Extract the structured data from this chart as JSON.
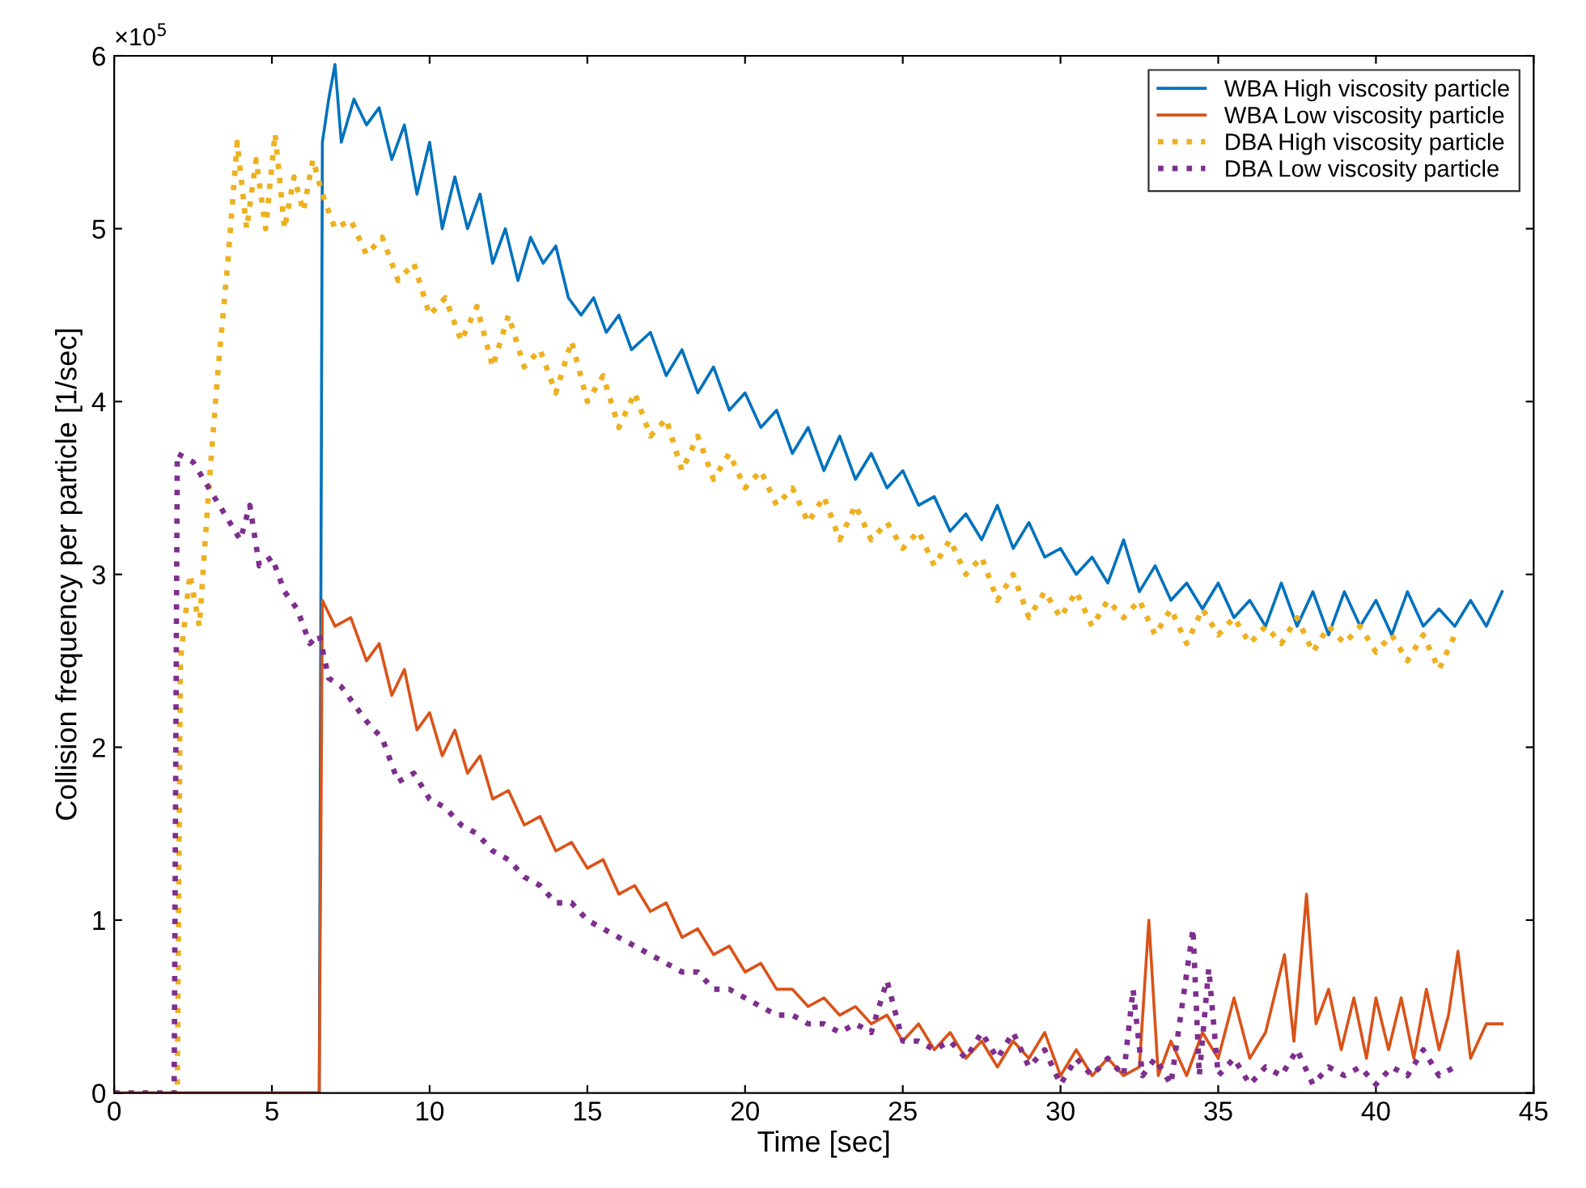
{
  "chart_data": {
    "type": "line",
    "xlabel": "Time [sec]",
    "ylabel": "Collision frequency per particle [1/sec]",
    "annotations": [
      "×10$^{5}$"
    ],
    "xlim": [
      0,
      45
    ],
    "ylim": [
      0,
      6
    ],
    "xticks": [
      0,
      5,
      10,
      15,
      20,
      25,
      30,
      35,
      40,
      45
    ],
    "yticks": [
      0,
      1,
      2,
      3,
      4,
      5,
      6
    ],
    "grid": false,
    "legend": "top right",
    "series": [
      {
        "name": "WBA High viscosity particle",
        "color": "#0072bd",
        "line_style": "solid",
        "x": [
          0,
          6.5,
          6.6,
          6.8,
          7.0,
          7.2,
          7.6,
          8.0,
          8.4,
          8.8,
          9.2,
          9.6,
          10.0,
          10.4,
          10.8,
          11.2,
          11.6,
          12.0,
          12.4,
          12.8,
          13.2,
          13.6,
          14.0,
          14.4,
          14.8,
          15.2,
          15.6,
          16.0,
          16.4,
          17.0,
          17.5,
          18.0,
          18.5,
          19.0,
          19.5,
          20.0,
          20.5,
          21.0,
          21.5,
          22.0,
          22.5,
          23.0,
          23.5,
          24.0,
          24.5,
          25.0,
          25.5,
          26.0,
          26.5,
          27.0,
          27.5,
          28.0,
          28.5,
          29.0,
          29.5,
          30.0,
          30.5,
          31.0,
          31.5,
          32.0,
          32.5,
          33.0,
          33.5,
          34.0,
          34.5,
          35.0,
          35.5,
          36.0,
          36.5,
          37.0,
          37.5,
          38.0,
          38.5,
          39.0,
          39.5,
          40.0,
          40.5,
          41.0,
          41.5,
          42.0,
          42.5,
          43.0,
          43.5,
          44.0
        ],
        "values": [
          0,
          0,
          5.5,
          5.75,
          5.95,
          5.5,
          5.75,
          5.6,
          5.7,
          5.4,
          5.6,
          5.2,
          5.5,
          5.0,
          5.3,
          5.0,
          5.2,
          4.8,
          5.0,
          4.7,
          4.95,
          4.8,
          4.9,
          4.6,
          4.5,
          4.6,
          4.4,
          4.5,
          4.3,
          4.4,
          4.15,
          4.3,
          4.05,
          4.2,
          3.95,
          4.05,
          3.85,
          3.95,
          3.7,
          3.85,
          3.6,
          3.8,
          3.55,
          3.7,
          3.5,
          3.6,
          3.4,
          3.45,
          3.25,
          3.35,
          3.2,
          3.4,
          3.15,
          3.3,
          3.1,
          3.15,
          3.0,
          3.1,
          2.95,
          3.2,
          2.9,
          3.05,
          2.85,
          2.95,
          2.8,
          2.95,
          2.75,
          2.85,
          2.7,
          2.95,
          2.7,
          2.9,
          2.65,
          2.9,
          2.7,
          2.85,
          2.65,
          2.9,
          2.7,
          2.8,
          2.7,
          2.85,
          2.7,
          2.9
        ]
      },
      {
        "name": "WBA Low viscosity particle",
        "color": "#d95319",
        "line_style": "solid",
        "x": [
          0,
          6.5,
          6.6,
          7.0,
          7.5,
          8.0,
          8.4,
          8.8,
          9.2,
          9.6,
          10.0,
          10.4,
          10.8,
          11.2,
          11.6,
          12.0,
          12.5,
          13.0,
          13.5,
          14.0,
          14.5,
          15.0,
          15.5,
          16.0,
          16.5,
          17.0,
          17.5,
          18.0,
          18.5,
          19.0,
          19.5,
          20.0,
          20.5,
          21.0,
          21.5,
          22.0,
          22.5,
          23.0,
          23.5,
          24.0,
          24.5,
          25.0,
          25.5,
          26.0,
          26.5,
          27.0,
          27.5,
          28.0,
          28.5,
          29.0,
          29.5,
          30.0,
          30.5,
          31.0,
          31.5,
          32.0,
          32.5,
          32.8,
          33.1,
          33.5,
          34.0,
          34.5,
          35.0,
          35.5,
          36.0,
          36.5,
          37.1,
          37.4,
          37.8,
          38.1,
          38.5,
          38.9,
          39.3,
          39.7,
          40.0,
          40.4,
          40.8,
          41.2,
          41.6,
          42.0,
          42.3,
          42.6,
          43.0,
          43.5,
          44.0
        ],
        "values": [
          0,
          0,
          2.85,
          2.7,
          2.75,
          2.5,
          2.6,
          2.3,
          2.45,
          2.1,
          2.2,
          1.95,
          2.1,
          1.85,
          1.95,
          1.7,
          1.75,
          1.55,
          1.6,
          1.4,
          1.45,
          1.3,
          1.35,
          1.15,
          1.2,
          1.05,
          1.1,
          0.9,
          0.95,
          0.8,
          0.85,
          0.7,
          0.75,
          0.6,
          0.6,
          0.5,
          0.55,
          0.45,
          0.5,
          0.4,
          0.45,
          0.3,
          0.4,
          0.25,
          0.35,
          0.2,
          0.3,
          0.15,
          0.3,
          0.2,
          0.35,
          0.1,
          0.25,
          0.1,
          0.2,
          0.1,
          0.15,
          1.0,
          0.1,
          0.3,
          0.1,
          0.35,
          0.2,
          0.55,
          0.2,
          0.35,
          0.8,
          0.3,
          1.15,
          0.4,
          0.6,
          0.25,
          0.55,
          0.2,
          0.55,
          0.25,
          0.55,
          0.2,
          0.6,
          0.25,
          0.45,
          0.82,
          0.2,
          0.4,
          0.4
        ]
      },
      {
        "name": "DBA High viscosity particle",
        "color": "#edb120",
        "line_style": "dotted",
        "x": [
          0,
          2.0,
          2.1,
          2.4,
          2.7,
          3.0,
          3.3,
          3.6,
          3.9,
          4.2,
          4.5,
          4.8,
          5.1,
          5.4,
          5.7,
          6.0,
          6.3,
          6.6,
          7.0,
          7.5,
          8.0,
          8.5,
          9.0,
          9.5,
          10.0,
          10.5,
          11.0,
          11.5,
          12.0,
          12.5,
          13.0,
          13.5,
          14.0,
          14.5,
          15.0,
          15.5,
          16.0,
          16.5,
          17.0,
          17.5,
          18.0,
          18.5,
          19.0,
          19.5,
          20.0,
          20.5,
          21.0,
          21.5,
          22.0,
          22.5,
          23.0,
          23.5,
          24.0,
          24.5,
          25.0,
          25.5,
          26.0,
          26.5,
          27.0,
          27.5,
          28.0,
          28.5,
          29.0,
          29.5,
          30.0,
          30.5,
          31.0,
          31.5,
          32.0,
          32.5,
          33.0,
          33.5,
          34.0,
          34.5,
          35.0,
          35.5,
          36.0,
          36.5,
          37.0,
          37.5,
          38.0,
          38.5,
          39.0,
          39.5,
          40.0,
          40.5,
          41.0,
          41.5,
          42.0,
          42.5
        ],
        "values": [
          0,
          0,
          2.5,
          3.0,
          2.7,
          3.5,
          4.2,
          4.8,
          5.5,
          5.0,
          5.4,
          5.0,
          5.55,
          5.0,
          5.3,
          5.1,
          5.4,
          5.2,
          5.0,
          5.05,
          4.85,
          4.95,
          4.7,
          4.8,
          4.5,
          4.6,
          4.35,
          4.55,
          4.2,
          4.5,
          4.2,
          4.3,
          4.05,
          4.35,
          4.0,
          4.15,
          3.85,
          4.05,
          3.8,
          3.9,
          3.6,
          3.8,
          3.55,
          3.7,
          3.5,
          3.6,
          3.4,
          3.5,
          3.3,
          3.45,
          3.2,
          3.4,
          3.2,
          3.3,
          3.15,
          3.25,
          3.05,
          3.2,
          3.0,
          3.1,
          2.85,
          3.0,
          2.75,
          2.9,
          2.75,
          2.9,
          2.7,
          2.85,
          2.75,
          2.85,
          2.65,
          2.8,
          2.6,
          2.8,
          2.65,
          2.75,
          2.6,
          2.7,
          2.6,
          2.75,
          2.55,
          2.7,
          2.6,
          2.7,
          2.55,
          2.65,
          2.5,
          2.65,
          2.45,
          2.65
        ]
      },
      {
        "name": "DBA Low viscosity particle",
        "color": "#7e2f8e",
        "line_style": "dotted",
        "x": [
          0,
          1.9,
          2.0,
          2.5,
          3.0,
          3.5,
          4.0,
          4.3,
          4.6,
          5.0,
          5.4,
          5.8,
          6.2,
          6.5,
          6.8,
          7.2,
          7.6,
          8.0,
          8.5,
          9.0,
          9.5,
          10.0,
          10.5,
          11.0,
          11.5,
          12.0,
          12.5,
          13.0,
          13.5,
          14.0,
          14.5,
          15.0,
          15.5,
          16.0,
          16.5,
          17.0,
          17.5,
          18.0,
          18.5,
          19.0,
          19.5,
          20.0,
          20.5,
          21.0,
          21.5,
          22.0,
          22.5,
          23.0,
          23.5,
          24.0,
          24.5,
          25.0,
          25.5,
          26.0,
          26.5,
          27.0,
          27.5,
          28.0,
          28.5,
          29.0,
          29.5,
          30.0,
          30.5,
          31.0,
          31.5,
          32.0,
          32.3,
          32.6,
          33.0,
          33.5,
          34.2,
          34.4,
          34.7,
          35.0,
          35.5,
          36.0,
          36.5,
          37.0,
          37.5,
          38.0,
          38.5,
          39.0,
          39.5,
          40.0,
          40.5,
          41.0,
          41.5,
          42.0,
          42.5
        ],
        "values": [
          0,
          0,
          3.7,
          3.65,
          3.5,
          3.35,
          3.2,
          3.4,
          3.05,
          3.1,
          2.9,
          2.8,
          2.6,
          2.65,
          2.4,
          2.35,
          2.25,
          2.15,
          2.05,
          1.8,
          1.85,
          1.7,
          1.65,
          1.55,
          1.5,
          1.4,
          1.35,
          1.25,
          1.2,
          1.1,
          1.1,
          1.0,
          0.95,
          0.9,
          0.85,
          0.8,
          0.75,
          0.7,
          0.7,
          0.6,
          0.6,
          0.55,
          0.5,
          0.45,
          0.45,
          0.4,
          0.4,
          0.35,
          0.4,
          0.35,
          0.65,
          0.3,
          0.3,
          0.25,
          0.3,
          0.2,
          0.35,
          0.2,
          0.35,
          0.15,
          0.25,
          0.05,
          0.2,
          0.1,
          0.2,
          0.1,
          0.6,
          0.1,
          0.2,
          0.05,
          0.95,
          0.1,
          0.72,
          0.1,
          0.2,
          0.05,
          0.15,
          0.1,
          0.25,
          0.05,
          0.15,
          0.1,
          0.15,
          0.05,
          0.15,
          0.1,
          0.25,
          0.1,
          0.15
        ]
      }
    ]
  }
}
